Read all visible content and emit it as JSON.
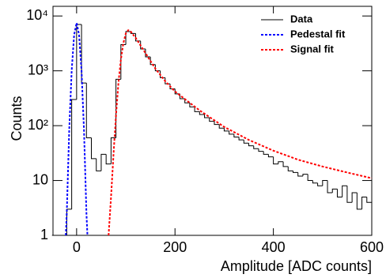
{
  "chart_data": {
    "type": "histogram",
    "xlabel": "Amplitude [ADC counts]",
    "ylabel": "Counts",
    "bins": [
      -50,
      -40,
      -30,
      -20,
      -10,
      0,
      10,
      20,
      30,
      40,
      50,
      60,
      70,
      80,
      90,
      100,
      110,
      120,
      130,
      140,
      150,
      160,
      170,
      180,
      190,
      200,
      210,
      220,
      230,
      240,
      250,
      260,
      270,
      280,
      290,
      300,
      310,
      320,
      330,
      340,
      350,
      360,
      370,
      380,
      390,
      400,
      410,
      420,
      430,
      440,
      450,
      460,
      470,
      480,
      490,
      500,
      510,
      520,
      530,
      540,
      550,
      560,
      570,
      580,
      590,
      600
    ],
    "series": [
      {
        "name": "Data",
        "color": "#000000",
        "dash": "none",
        "values": [
          1,
          1,
          1,
          3,
          300,
          7000,
          600,
          60,
          25,
          15,
          30,
          20,
          60,
          700,
          3000,
          5200,
          4800,
          3500,
          2500,
          1800,
          1300,
          1000,
          750,
          580,
          470,
          380,
          310,
          260,
          220,
          180,
          160,
          140,
          120,
          105,
          90,
          80,
          70,
          62,
          55,
          48,
          43,
          38,
          34,
          30,
          27,
          20,
          22,
          18,
          15,
          14,
          12,
          13,
          10,
          9,
          8,
          10,
          6,
          7,
          5,
          8,
          4,
          6,
          3,
          5,
          4
        ]
      },
      {
        "name": "Pedestal fit",
        "color": "#0000ff",
        "dash": "3,2",
        "x": [
          -22,
          -20,
          -15,
          -10,
          -5,
          0,
          5,
          10,
          15,
          20,
          22
        ],
        "values": [
          1,
          2.5,
          83,
          1015,
          4550,
          7500,
          4550,
          1015,
          83,
          2.5,
          1
        ]
      },
      {
        "name": "Signal fit",
        "color": "#ff0000",
        "dash": "3,2",
        "x": [
          65,
          70,
          75,
          80,
          85,
          90,
          95,
          100,
          105,
          110,
          120,
          140,
          160,
          180,
          200,
          250,
          300,
          350,
          400,
          450,
          500,
          550,
          600
        ],
        "values": [
          1,
          5,
          30,
          150,
          600,
          1600,
          3200,
          4800,
          5500,
          5200,
          4000,
          2100,
          1100,
          650,
          420,
          190,
          95,
          55,
          35,
          24,
          18,
          14,
          11
        ]
      }
    ],
    "xlim": [
      -48,
      600
    ],
    "xticks": [
      0,
      200,
      400,
      600
    ],
    "ylim": [
      1,
      15000
    ],
    "yticks": [
      1,
      10,
      {
        "value": 100,
        "label": "10²"
      },
      {
        "value": 1000,
        "label": "10³"
      },
      {
        "value": 10000,
        "label": "10⁴"
      }
    ],
    "log_y": true,
    "legend": "upper right"
  }
}
